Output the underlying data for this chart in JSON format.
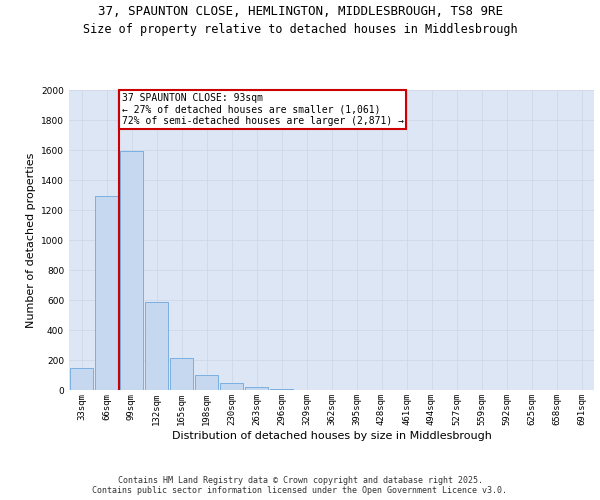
{
  "title_line1": "37, SPAUNTON CLOSE, HEMLINGTON, MIDDLESBROUGH, TS8 9RE",
  "title_line2": "Size of property relative to detached houses in Middlesbrough",
  "xlabel": "Distribution of detached houses by size in Middlesbrough",
  "ylabel": "Number of detached properties",
  "categories": [
    "33sqm",
    "66sqm",
    "99sqm",
    "132sqm",
    "165sqm",
    "198sqm",
    "230sqm",
    "263sqm",
    "296sqm",
    "329sqm",
    "362sqm",
    "395sqm",
    "428sqm",
    "461sqm",
    "494sqm",
    "527sqm",
    "559sqm",
    "592sqm",
    "625sqm",
    "658sqm",
    "691sqm"
  ],
  "values": [
    145,
    1295,
    1595,
    585,
    215,
    100,
    48,
    22,
    5,
    0,
    0,
    0,
    0,
    0,
    0,
    0,
    0,
    0,
    0,
    0,
    0
  ],
  "bar_color": "#c5d8f0",
  "bar_edge_color": "#7aafe0",
  "vline_color": "#cc0000",
  "vline_x_index": 1.5,
  "annotation_line1": "37 SPAUNTON CLOSE: 93sqm",
  "annotation_line2": "← 27% of detached houses are smaller (1,061)",
  "annotation_line3": "72% of semi-detached houses are larger (2,871) →",
  "annotation_box_color": "#cc0000",
  "ylim": [
    0,
    2000
  ],
  "yticks": [
    0,
    200,
    400,
    600,
    800,
    1000,
    1200,
    1400,
    1600,
    1800,
    2000
  ],
  "grid_color": "#d0d8e8",
  "background_color": "#dce6f5",
  "footer_line1": "Contains HM Land Registry data © Crown copyright and database right 2025.",
  "footer_line2": "Contains public sector information licensed under the Open Government Licence v3.0.",
  "title_fontsize": 9,
  "axis_label_fontsize": 8,
  "tick_fontsize": 6.5,
  "footer_fontsize": 6,
  "annotation_fontsize": 7
}
